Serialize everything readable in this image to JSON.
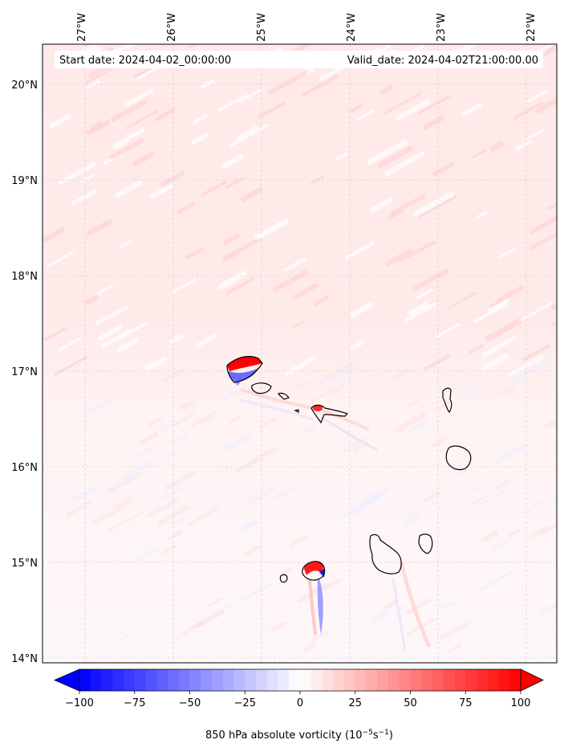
{
  "map": {
    "start_label": "Start date: 2024-04-02_00:00:00",
    "valid_label": "Valid_date: 2024-04-02T21:00:00.00",
    "lon_labels": [
      "27°W",
      "26°W",
      "25°W",
      "24°W",
      "23°W",
      "22°W"
    ],
    "lat_labels": [
      "20°N",
      "19°N",
      "18°N",
      "17°N",
      "16°N",
      "15°N",
      "14°N"
    ],
    "lon_values": [
      -27,
      -26,
      -25,
      -24,
      -23,
      -22
    ],
    "lat_values": [
      20,
      19,
      18,
      17,
      16,
      15,
      14
    ],
    "background_color": "#fff5f5",
    "north_tint_color": "#ffe7e7",
    "coastline_color": "#000000"
  },
  "colorbar": {
    "label": "850 hPa absolute vorticity (10",
    "label_exp1": "−5",
    "label_mid": "s",
    "label_exp2": "−1",
    "label_end": ")",
    "tick_labels": [
      "−100",
      "−75",
      "−50",
      "−25",
      "0",
      "25",
      "50",
      "75",
      "100"
    ],
    "tick_values": [
      -100,
      -75,
      -50,
      -25,
      0,
      25,
      50,
      75,
      100
    ],
    "vmin": -100,
    "vmax": 100,
    "extend": "both",
    "colormap": "bwr",
    "low_color": "#0000ff",
    "mid_color": "#ffffff",
    "high_color": "#ff0000"
  }
}
